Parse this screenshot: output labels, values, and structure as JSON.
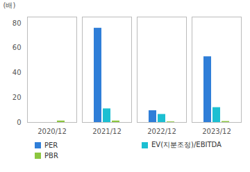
{
  "chart_data": {
    "type": "bar",
    "y_label": "(배)",
    "categories": [
      "2020/12",
      "2021/12",
      "2022/12",
      "2023/12"
    ],
    "series": [
      {
        "name": "PER",
        "color": "#2f7ed8",
        "values": [
          null,
          76,
          9.5,
          53
        ]
      },
      {
        "name": "EV(지분조정)/EBITDA",
        "color": "#1cbfd2",
        "values": [
          null,
          11,
          6.5,
          12
        ]
      },
      {
        "name": "PBR",
        "color": "#8cc63f",
        "values": [
          1.2,
          1.2,
          0.5,
          0.8
        ]
      }
    ],
    "ylim": [
      0,
      85
    ],
    "yticks": [
      0,
      20,
      40,
      60,
      80
    ],
    "grid": false,
    "legend": "bottom"
  }
}
